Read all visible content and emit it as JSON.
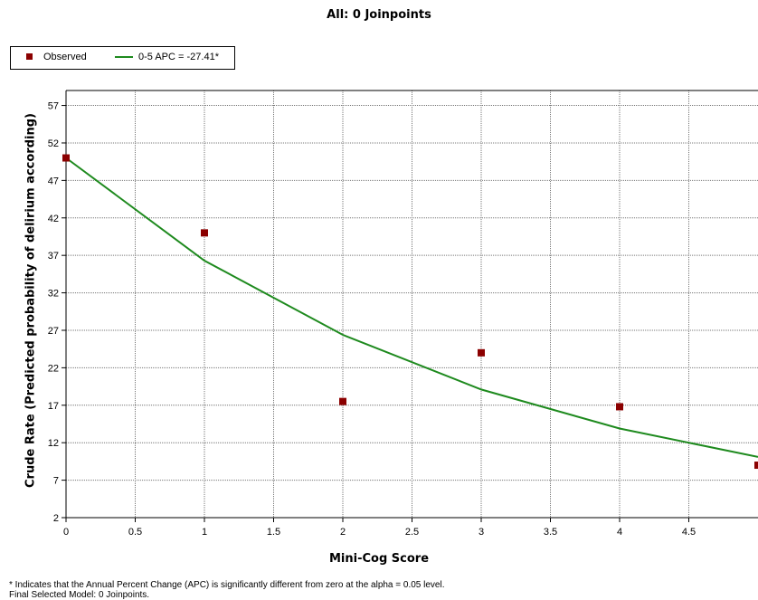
{
  "chart_data": {
    "type": "line",
    "title": "All: 0 Joinpoints",
    "xlabel": "Mini-Cog Score",
    "ylabel": "Crude Rate (Predicted probability of delirium according)",
    "xlim": [
      0,
      5
    ],
    "ylim": [
      2,
      59
    ],
    "x_ticks": [
      0,
      0.5,
      1,
      1.5,
      2,
      2.5,
      3,
      3.5,
      4,
      4.5
    ],
    "x_tick_labels": [
      "0",
      "0.5",
      "1",
      "1.5",
      "2",
      "2.5",
      "3",
      "3.5",
      "4",
      "4.5"
    ],
    "y_ticks": [
      2,
      7,
      12,
      17,
      22,
      27,
      32,
      37,
      42,
      47,
      52,
      57
    ],
    "y_tick_labels": [
      "2",
      "7",
      "12",
      "17",
      "22",
      "27",
      "32",
      "37",
      "42",
      "47",
      "52",
      "57"
    ],
    "grid": true,
    "legend_position": "top-left",
    "series": [
      {
        "name": "Observed",
        "kind": "scatter",
        "color": "#8b0000",
        "x": [
          0,
          1,
          2,
          3,
          4,
          5
        ],
        "y": [
          50,
          40,
          17.5,
          24,
          16.8,
          9
        ]
      },
      {
        "name": "0-5 APC  = -27.41*",
        "kind": "line",
        "color": "#1e8a1e",
        "x": [
          0,
          1,
          2,
          3,
          4,
          5
        ],
        "y": [
          50,
          36.3,
          26.4,
          19.1,
          13.9,
          10.1
        ]
      }
    ]
  },
  "legend": {
    "observed_label": "Observed",
    "fit_label": "0-5 APC  = -27.41*"
  },
  "footnote": {
    "line1": "* Indicates that the Annual Percent Change (APC) is significantly different from zero at the alpha = 0.05 level.",
    "line2": "Final Selected Model: 0 Joinpoints."
  }
}
